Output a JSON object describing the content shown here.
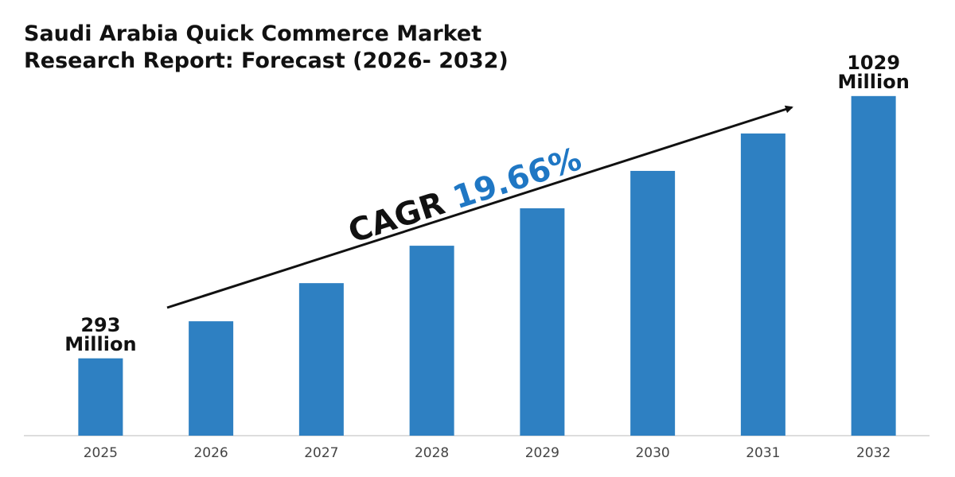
{
  "chart_data": {
    "type": "bar",
    "title": "Saudi Arabia Quick Commerce Market Research Report: Forecast (2026- 2032)",
    "categories": [
      "2025",
      "2026",
      "2027",
      "2028",
      "2029",
      "2030",
      "2031",
      "2032"
    ],
    "values": [
      293,
      397,
      504,
      609,
      714,
      819,
      924,
      1029
    ],
    "value_labels": [
      "293 Million",
      null,
      null,
      null,
      null,
      null,
      null,
      "1029 Million"
    ],
    "color": "#2e80c2",
    "ylim": [
      76,
      1100
    ],
    "annotation": {
      "label": "CAGR",
      "value_label": "19.66%",
      "color": "#1f77c4"
    }
  }
}
